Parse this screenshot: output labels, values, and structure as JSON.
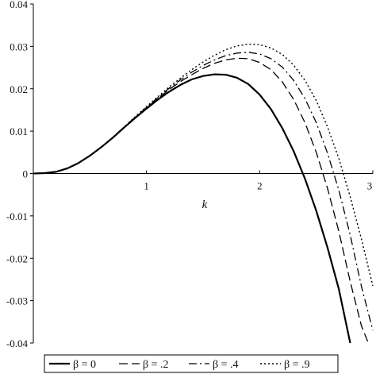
{
  "chart_data": {
    "type": "line",
    "title": "",
    "xlabel": "k",
    "ylabel": "",
    "xlim": [
      0,
      3
    ],
    "ylim": [
      -0.04,
      0.04
    ],
    "x_ticks": [
      {
        "value": 1,
        "label": "1"
      },
      {
        "value": 2,
        "label": "2"
      },
      {
        "value": 3,
        "label": "3"
      }
    ],
    "y_ticks": [
      {
        "value": 0.04,
        "label": "0.04"
      },
      {
        "value": 0.03,
        "label": "0.03"
      },
      {
        "value": 0.02,
        "label": "0.02"
      },
      {
        "value": 0.01,
        "label": "0.01"
      },
      {
        "value": 0,
        "label": "0"
      },
      {
        "value": -0.01,
        "label": "-0.01"
      },
      {
        "value": -0.02,
        "label": "-0.02"
      },
      {
        "value": -0.03,
        "label": "-0.03"
      },
      {
        "value": -0.04,
        "label": "-0.04"
      }
    ],
    "legend_position": "bottom",
    "series": [
      {
        "name": "β = 0",
        "style": "solid",
        "color": "#000000",
        "x": [
          0,
          0.1,
          0.2,
          0.3,
          0.4,
          0.5,
          0.6,
          0.7,
          0.8,
          0.9,
          1.0,
          1.1,
          1.2,
          1.3,
          1.4,
          1.5,
          1.6,
          1.7,
          1.8,
          1.9,
          2.0,
          2.1,
          2.2,
          2.3,
          2.4,
          2.5,
          2.6,
          2.7,
          2.8
        ],
        "y": [
          0,
          0.0001,
          0.0004,
          0.0012,
          0.0025,
          0.0042,
          0.0062,
          0.0084,
          0.0108,
          0.0131,
          0.0153,
          0.0174,
          0.0193,
          0.0209,
          0.0222,
          0.023,
          0.0234,
          0.0233,
          0.0226,
          0.0211,
          0.0186,
          0.0152,
          0.0107,
          0.0053,
          -0.0012,
          -0.0088,
          -0.0175,
          -0.0273,
          -0.04
        ]
      },
      {
        "name": "β = .2",
        "style": "dashed",
        "color": "#000000",
        "x": [
          0,
          0.1,
          0.2,
          0.3,
          0.4,
          0.5,
          0.6,
          0.7,
          0.8,
          0.9,
          1.0,
          1.1,
          1.2,
          1.3,
          1.4,
          1.5,
          1.6,
          1.7,
          1.8,
          1.9,
          2.0,
          2.1,
          2.2,
          2.3,
          2.4,
          2.5,
          2.6,
          2.7,
          2.8,
          2.9,
          2.96
        ],
        "y": [
          0,
          0.0001,
          0.0004,
          0.0012,
          0.0025,
          0.0042,
          0.0062,
          0.0084,
          0.0108,
          0.0132,
          0.0155,
          0.0177,
          0.0198,
          0.0217,
          0.0233,
          0.0248,
          0.026,
          0.0268,
          0.0272,
          0.0271,
          0.0262,
          0.0245,
          0.0216,
          0.0175,
          0.012,
          0.005,
          -0.0035,
          -0.0137,
          -0.0255,
          -0.036,
          -0.04
        ]
      },
      {
        "name": "β = .4",
        "style": "dashdot",
        "color": "#000000",
        "x": [
          0,
          0.1,
          0.2,
          0.3,
          0.4,
          0.5,
          0.6,
          0.7,
          0.8,
          0.9,
          1.0,
          1.1,
          1.2,
          1.3,
          1.4,
          1.5,
          1.6,
          1.7,
          1.8,
          1.9,
          2.0,
          2.1,
          2.2,
          2.3,
          2.4,
          2.5,
          2.6,
          2.7,
          2.8,
          2.9,
          3.0
        ],
        "y": [
          0,
          0.0001,
          0.0004,
          0.0012,
          0.0025,
          0.0042,
          0.0062,
          0.0085,
          0.0109,
          0.0133,
          0.0156,
          0.0179,
          0.0201,
          0.0221,
          0.0239,
          0.0255,
          0.0268,
          0.0278,
          0.0284,
          0.0286,
          0.0282,
          0.0271,
          0.0251,
          0.022,
          0.0177,
          0.012,
          0.0048,
          -0.004,
          -0.0145,
          -0.0267,
          -0.037
        ]
      },
      {
        "name": "β = .9",
        "style": "dotted",
        "color": "#000000",
        "x": [
          0,
          0.1,
          0.2,
          0.3,
          0.4,
          0.5,
          0.6,
          0.7,
          0.8,
          0.9,
          1.0,
          1.1,
          1.2,
          1.3,
          1.4,
          1.5,
          1.6,
          1.7,
          1.8,
          1.9,
          2.0,
          2.1,
          2.2,
          2.3,
          2.4,
          2.5,
          2.6,
          2.7,
          2.8,
          2.9,
          3.0
        ],
        "y": [
          0,
          0.0001,
          0.0004,
          0.0012,
          0.0025,
          0.0042,
          0.0062,
          0.0085,
          0.0109,
          0.0134,
          0.0158,
          0.0181,
          0.0204,
          0.0225,
          0.0245,
          0.0263,
          0.0279,
          0.0292,
          0.0301,
          0.0305,
          0.0304,
          0.0296,
          0.0281,
          0.0256,
          0.022,
          0.0172,
          0.011,
          0.0035,
          -0.0055,
          -0.0155,
          -0.0265
        ]
      }
    ]
  }
}
